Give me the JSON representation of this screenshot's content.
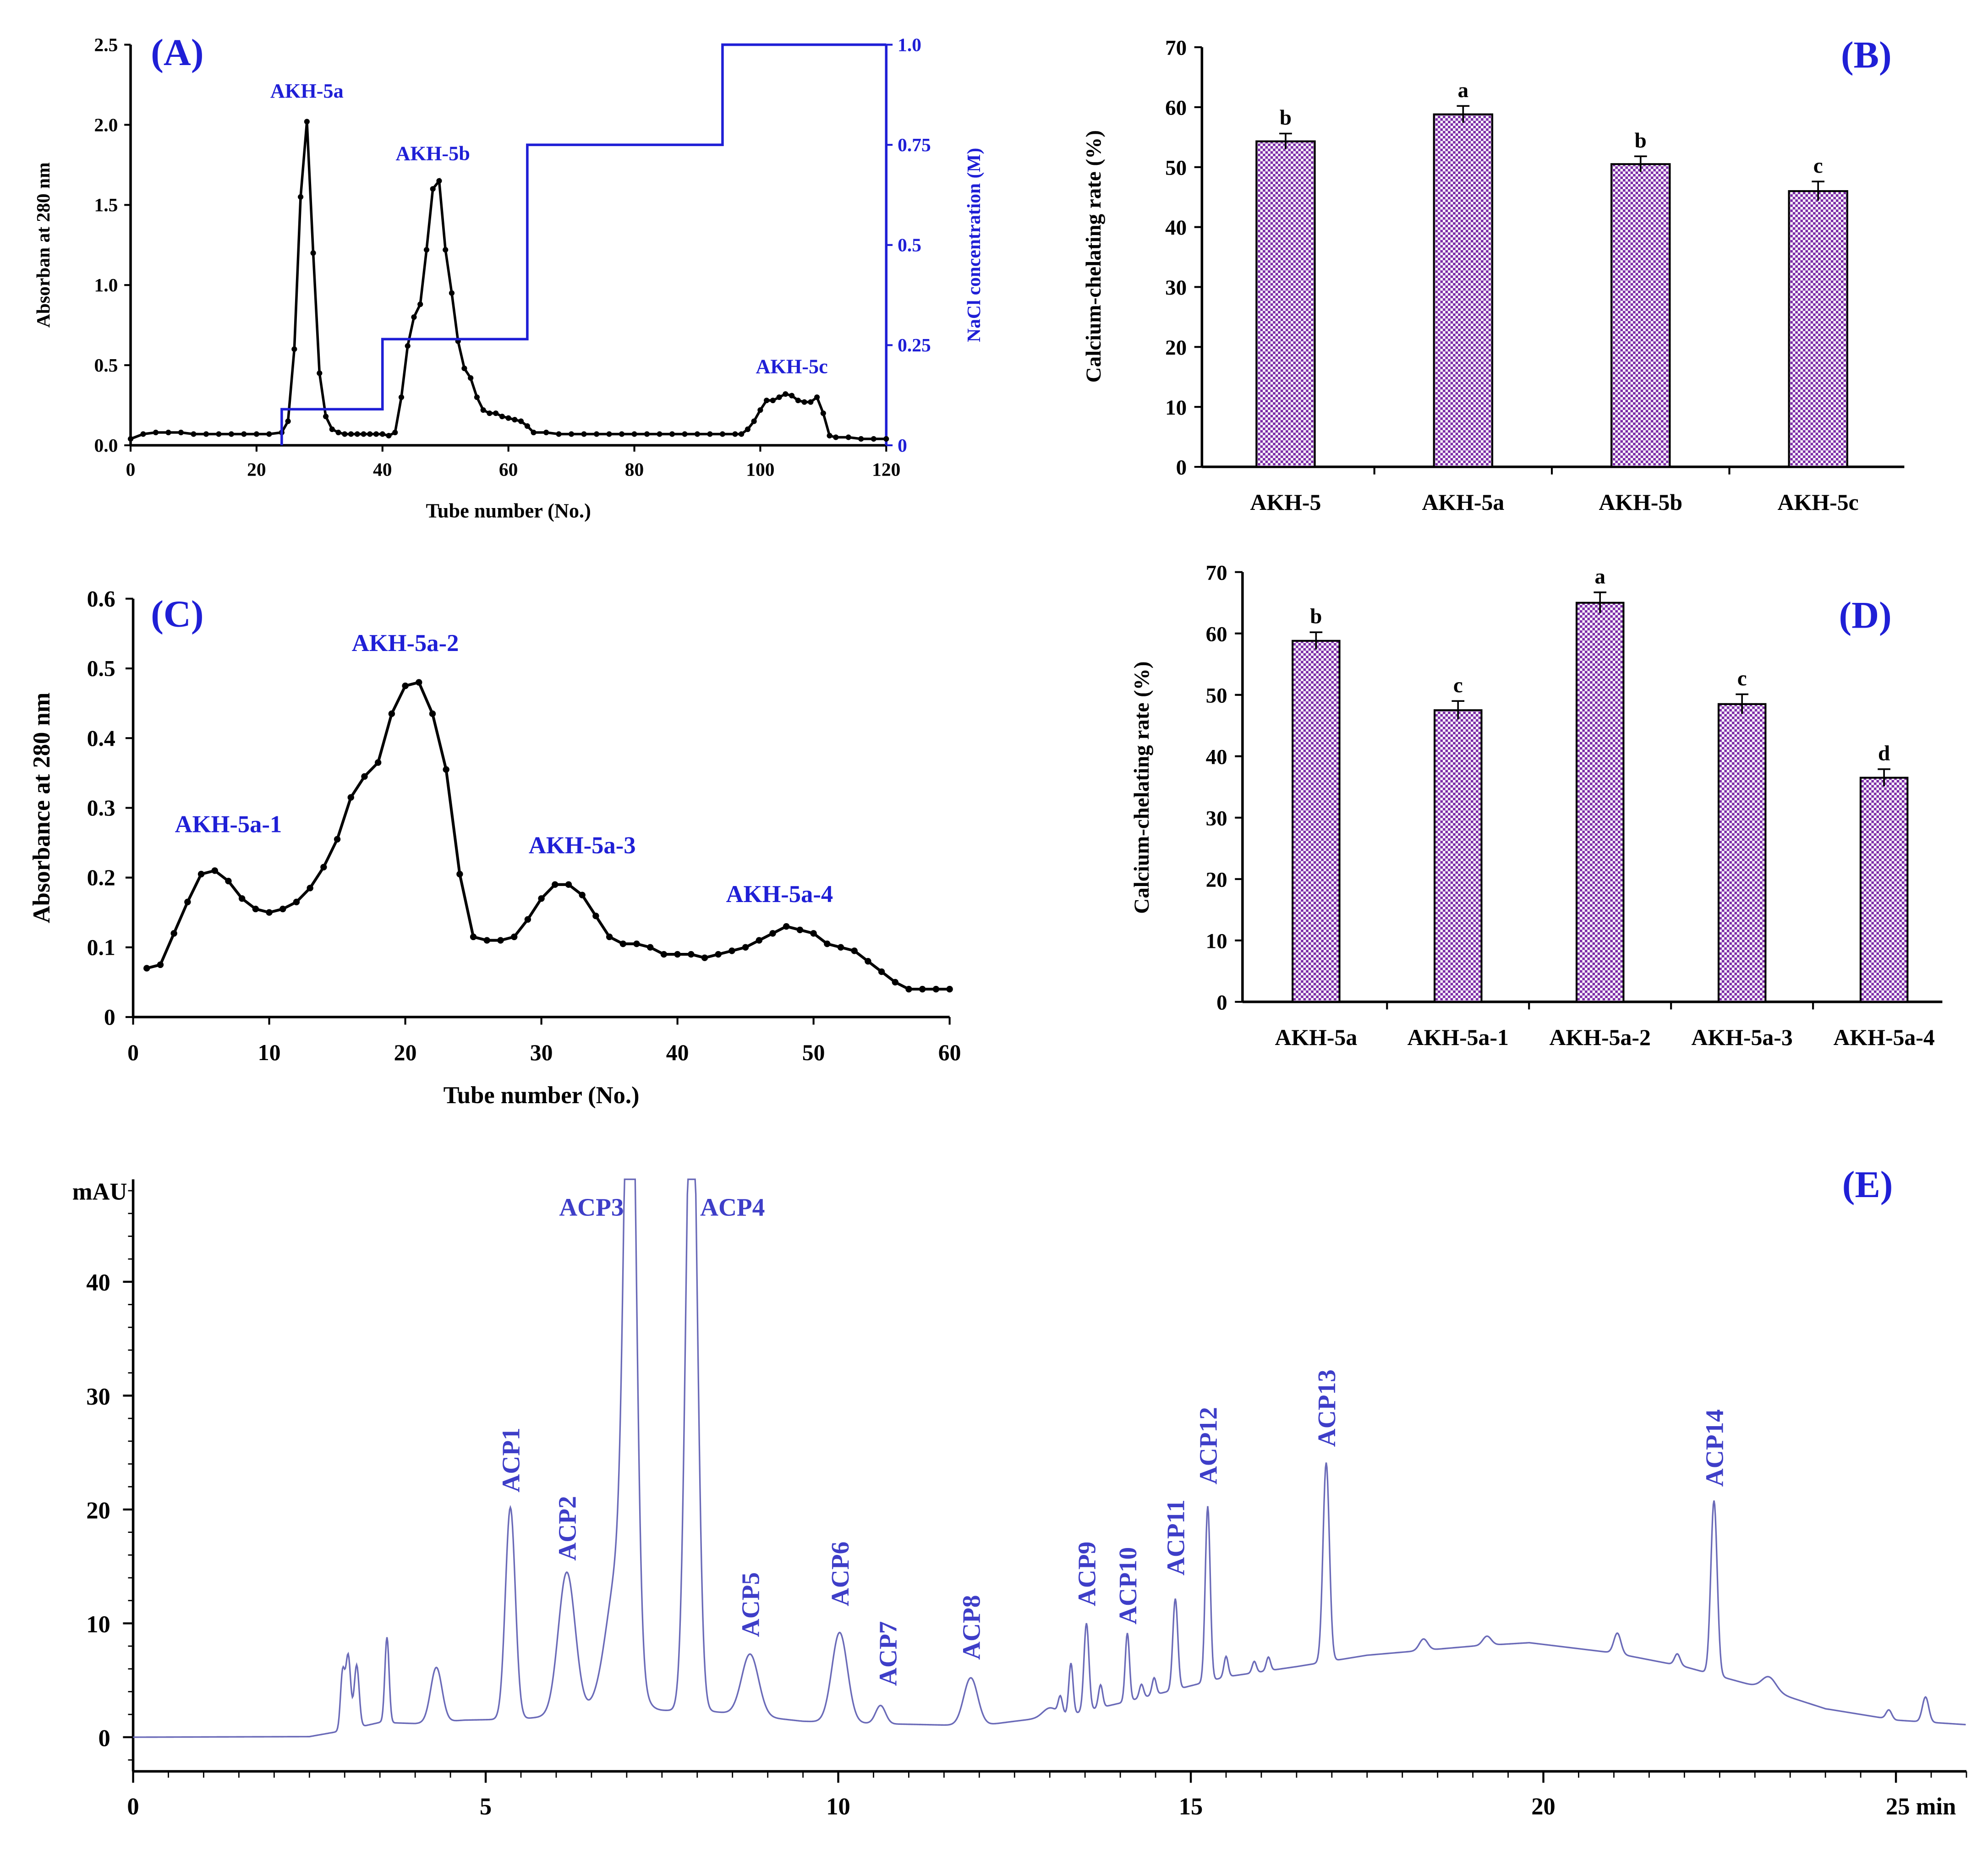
{
  "colors": {
    "axis": "#000000",
    "line": "#000000",
    "blue": "#1f1fd6",
    "peak_blue": "#3e3ec8",
    "hplc_trace": "#6a6ab8",
    "checker_a": "#7b2aa6",
    "checker_b": "#ffffff"
  },
  "chart_data": [
    {
      "panel": "(A)",
      "type": "line",
      "xlabel": "Tube number (No.)",
      "ylabel": "Absorban at 280 nm",
      "ylabel_right": "NaCl concentration (M)",
      "xlim": [
        0,
        120
      ],
      "ylim": [
        0,
        2.5
      ],
      "ylim_right": [
        0,
        1.0
      ],
      "x_ticks": [
        "0",
        "20",
        "40",
        "60",
        "80",
        "100",
        "120"
      ],
      "y_ticks": [
        "0.0",
        "0.5",
        "1.0",
        "1.5",
        "2.0",
        "2.5"
      ],
      "y_ticks_right": [
        "0",
        "0.25",
        "0.5",
        "0.75",
        "1.0"
      ],
      "series": [
        {
          "x": [
            0,
            2,
            4,
            6,
            8,
            10,
            12,
            14,
            16,
            18,
            20,
            22,
            24,
            25,
            26,
            27,
            28,
            29,
            30,
            31,
            32,
            33,
            34,
            35,
            36,
            37,
            38,
            39,
            40,
            41,
            42,
            43,
            44,
            45,
            46,
            47,
            48,
            49,
            50,
            51,
            52,
            53,
            54,
            55,
            56,
            57,
            58,
            59,
            60,
            61,
            62,
            63,
            64,
            66,
            68,
            70,
            72,
            74,
            76,
            78,
            80,
            82,
            84,
            86,
            88,
            90,
            92,
            94,
            96,
            97,
            98,
            99,
            100,
            101,
            102,
            103,
            104,
            105,
            106,
            107,
            108,
            109,
            110,
            111,
            112,
            114,
            116,
            118,
            120
          ],
          "y": [
            0.04,
            0.07,
            0.08,
            0.08,
            0.08,
            0.07,
            0.07,
            0.07,
            0.07,
            0.07,
            0.07,
            0.07,
            0.08,
            0.15,
            0.6,
            1.55,
            2.02,
            1.2,
            0.45,
            0.18,
            0.1,
            0.08,
            0.07,
            0.07,
            0.07,
            0.07,
            0.07,
            0.07,
            0.07,
            0.06,
            0.08,
            0.3,
            0.62,
            0.8,
            0.88,
            1.22,
            1.6,
            1.65,
            1.22,
            0.95,
            0.65,
            0.48,
            0.42,
            0.3,
            0.22,
            0.2,
            0.2,
            0.18,
            0.17,
            0.16,
            0.15,
            0.12,
            0.08,
            0.08,
            0.07,
            0.07,
            0.07,
            0.07,
            0.07,
            0.07,
            0.07,
            0.07,
            0.07,
            0.07,
            0.07,
            0.07,
            0.07,
            0.07,
            0.07,
            0.07,
            0.1,
            0.15,
            0.22,
            0.28,
            0.28,
            0.3,
            0.32,
            0.31,
            0.28,
            0.27,
            0.27,
            0.3,
            0.2,
            0.06,
            0.05,
            0.05,
            0.04,
            0.04,
            0.04
          ]
        },
        {
          "name": "NaCl",
          "axis": "right",
          "step_x": [
            24,
            24,
            40,
            40,
            63,
            63,
            94,
            94,
            120
          ],
          "step_y": [
            0,
            0.09,
            0.09,
            0.265,
            0.265,
            0.75,
            0.75,
            1.0,
            1.0
          ]
        }
      ],
      "annotations": [
        {
          "text": "AKH-5a",
          "x": 28,
          "y": 2.17
        },
        {
          "text": "AKH-5b",
          "x": 48,
          "y": 1.78
        },
        {
          "text": "AKH-5c",
          "x": 105,
          "y": 0.45
        }
      ]
    },
    {
      "panel": "(B)",
      "type": "bar",
      "ylabel": "Calcium-chelating rate (%)",
      "ylim": [
        0,
        70
      ],
      "y_ticks": [
        "0",
        "10",
        "20",
        "30",
        "40",
        "50",
        "60",
        "70"
      ],
      "categories": [
        "AKH-5",
        "AKH-5a",
        "AKH-5b",
        "AKH-5c"
      ],
      "values": [
        54.3,
        58.8,
        50.5,
        46.0
      ],
      "errors": [
        1.3,
        1.4,
        1.3,
        1.6
      ],
      "letters": [
        "b",
        "a",
        "b",
        "c"
      ]
    },
    {
      "panel": "(C)",
      "type": "line",
      "xlabel": "Tube number (No.)",
      "ylabel": "Absorbance at 280 nm",
      "xlim": [
        0,
        60
      ],
      "ylim": [
        0,
        0.6
      ],
      "x_ticks": [
        "0",
        "10",
        "20",
        "30",
        "40",
        "50",
        "60"
      ],
      "y_ticks": [
        "0",
        "0.1",
        "0.2",
        "0.3",
        "0.4",
        "0.5",
        "0.6"
      ],
      "series": [
        {
          "x": [
            1,
            2,
            3,
            4,
            5,
            6,
            7,
            8,
            9,
            10,
            11,
            12,
            13,
            14,
            15,
            16,
            17,
            18,
            19,
            20,
            21,
            22,
            23,
            24,
            25,
            26,
            27,
            28,
            29,
            30,
            31,
            32,
            33,
            34,
            35,
            36,
            37,
            38,
            39,
            40,
            41,
            42,
            43,
            44,
            45,
            46,
            47,
            48,
            49,
            50,
            51,
            52,
            53,
            54,
            55,
            56,
            57,
            58,
            59,
            60
          ],
          "y": [
            0.07,
            0.075,
            0.12,
            0.165,
            0.205,
            0.21,
            0.195,
            0.17,
            0.155,
            0.15,
            0.155,
            0.165,
            0.185,
            0.215,
            0.255,
            0.315,
            0.345,
            0.365,
            0.435,
            0.475,
            0.48,
            0.435,
            0.355,
            0.205,
            0.115,
            0.11,
            0.11,
            0.115,
            0.14,
            0.17,
            0.19,
            0.19,
            0.175,
            0.145,
            0.115,
            0.105,
            0.105,
            0.1,
            0.09,
            0.09,
            0.09,
            0.085,
            0.09,
            0.095,
            0.1,
            0.11,
            0.12,
            0.13,
            0.125,
            0.12,
            0.105,
            0.1,
            0.095,
            0.08,
            0.065,
            0.05,
            0.04,
            0.04,
            0.04,
            0.04
          ]
        }
      ],
      "annotations": [
        {
          "text": "AKH-5a-1",
          "x": 7,
          "y": 0.265
        },
        {
          "text": "AKH-5a-2",
          "x": 20,
          "y": 0.525
        },
        {
          "text": "AKH-5a-3",
          "x": 33,
          "y": 0.235
        },
        {
          "text": "AKH-5a-4",
          "x": 47.5,
          "y": 0.165
        }
      ]
    },
    {
      "panel": "(D)",
      "type": "bar",
      "ylabel": "Calcium-chelating rate (%)",
      "ylim": [
        0,
        70
      ],
      "y_ticks": [
        "0",
        "10",
        "20",
        "30",
        "40",
        "50",
        "60",
        "70"
      ],
      "categories": [
        "AKH-5a",
        "AKH-5a-1",
        "AKH-5a-2",
        "AKH-5a-3",
        "AKH-5a-4"
      ],
      "values": [
        58.8,
        47.5,
        65.0,
        48.5,
        36.5
      ],
      "errors": [
        1.4,
        1.5,
        1.7,
        1.6,
        1.4
      ],
      "letters": [
        "b",
        "c",
        "a",
        "c",
        "d"
      ]
    },
    {
      "panel": "(E)",
      "type": "line",
      "ylabel": "mAU",
      "xunit": "min",
      "xlim": [
        0,
        26
      ],
      "ylim": [
        -3,
        49
      ],
      "x_ticks": [
        "0",
        "5",
        "10",
        "15",
        "20",
        "25 min"
      ],
      "y_ticks": [
        "0",
        "10",
        "20",
        "30",
        "40"
      ],
      "baseline": [
        [
          0,
          0
        ],
        [
          2.5,
          0.05
        ],
        [
          3,
          0.6
        ],
        [
          3.5,
          1.3
        ],
        [
          4,
          1.2
        ],
        [
          4.7,
          1.5
        ],
        [
          5.5,
          1.6
        ],
        [
          6.5,
          2.2
        ],
        [
          8,
          2.4
        ],
        [
          9.5,
          1.4
        ],
        [
          10.5,
          1.2
        ],
        [
          12,
          1.0
        ],
        [
          12.5,
          1.4
        ],
        [
          13.3,
          2.0
        ],
        [
          14,
          3.0
        ],
        [
          14.8,
          4.2
        ],
        [
          15.5,
          5.3
        ],
        [
          16.5,
          6.2
        ],
        [
          17.5,
          7.2
        ],
        [
          19,
          8.0
        ],
        [
          19.8,
          8.3
        ],
        [
          21,
          7.4
        ],
        [
          22,
          6.2
        ],
        [
          23,
          4.5
        ],
        [
          24,
          2.5
        ],
        [
          25,
          1.5
        ],
        [
          26,
          1.1
        ]
      ],
      "peaks": [
        {
          "t": 2.97,
          "h": 5.0,
          "w": 0.03
        },
        {
          "t": 3.05,
          "h": 6.5,
          "w": 0.035
        },
        {
          "t": 3.17,
          "h": 5.5,
          "w": 0.035
        },
        {
          "t": 3.6,
          "h": 7.5,
          "w": 0.03
        },
        {
          "t": 4.3,
          "h": 4.8,
          "w": 0.08
        },
        {
          "t": 5.35,
          "h": 18.6,
          "w": 0.07
        },
        {
          "t": 6.15,
          "h": 12.5,
          "w": 0.12
        },
        {
          "t": 6.9,
          "h": 13.0,
          "w": 0.18
        },
        {
          "t": 7.05,
          "h": 60.0,
          "w": 0.08
        },
        {
          "t": 7.92,
          "h": 60.0,
          "w": 0.08
        },
        {
          "t": 8.75,
          "h": 5.4,
          "w": 0.12
        },
        {
          "t": 10.02,
          "h": 7.9,
          "w": 0.11
        },
        {
          "t": 10.6,
          "h": 1.6,
          "w": 0.07
        },
        {
          "t": 11.88,
          "h": 4.2,
          "w": 0.1
        },
        {
          "t": 13.0,
          "h": 0.8,
          "w": 0.1
        },
        {
          "t": 13.15,
          "h": 1.5,
          "w": 0.03
        },
        {
          "t": 13.3,
          "h": 4.5,
          "w": 0.03
        },
        {
          "t": 13.52,
          "h": 7.7,
          "w": 0.035
        },
        {
          "t": 13.72,
          "h": 2.0,
          "w": 0.03
        },
        {
          "t": 14.1,
          "h": 6.0,
          "w": 0.03
        },
        {
          "t": 14.3,
          "h": 1.2,
          "w": 0.03
        },
        {
          "t": 14.48,
          "h": 1.5,
          "w": 0.03
        },
        {
          "t": 14.78,
          "h": 8.0,
          "w": 0.035
        },
        {
          "t": 15.24,
          "h": 15.4,
          "w": 0.035
        },
        {
          "t": 15.5,
          "h": 1.8,
          "w": 0.03
        },
        {
          "t": 15.9,
          "h": 1.0,
          "w": 0.03
        },
        {
          "t": 16.1,
          "h": 1.2,
          "w": 0.03
        },
        {
          "t": 16.92,
          "h": 17.5,
          "w": 0.045
        },
        {
          "t": 18.3,
          "h": 1.0,
          "w": 0.06
        },
        {
          "t": 19.2,
          "h": 0.8,
          "w": 0.06
        },
        {
          "t": 21.05,
          "h": 1.8,
          "w": 0.05
        },
        {
          "t": 21.9,
          "h": 1.0,
          "w": 0.04
        },
        {
          "t": 22.42,
          "h": 15.3,
          "w": 0.045
        },
        {
          "t": 23.2,
          "h": 1.2,
          "w": 0.1
        },
        {
          "t": 24.9,
          "h": 0.8,
          "w": 0.04
        },
        {
          "t": 25.42,
          "h": 2.2,
          "w": 0.045
        }
      ],
      "labels": [
        {
          "text": "ACP1",
          "t": 5.35,
          "y": 21.5,
          "rot": true
        },
        {
          "text": "ACP2",
          "t": 6.15,
          "y": 15.5,
          "rot": true
        },
        {
          "text": "ACP3",
          "t": 6.5,
          "y": 45.8,
          "rot": false
        },
        {
          "text": "ACP4",
          "t": 8.5,
          "y": 45.8,
          "rot": false
        },
        {
          "text": "ACP5",
          "t": 8.75,
          "y": 8.8,
          "rot": true
        },
        {
          "text": "ACP6",
          "t": 10.02,
          "y": 11.5,
          "rot": true
        },
        {
          "text": "ACP7",
          "t": 10.7,
          "y": 4.5,
          "rot": true
        },
        {
          "text": "ACP8",
          "t": 11.88,
          "y": 6.8,
          "rot": true
        },
        {
          "text": "ACP9",
          "t": 13.52,
          "y": 11.5,
          "rot": true
        },
        {
          "text": "ACP10",
          "t": 14.1,
          "y": 9.9,
          "rot": true
        },
        {
          "text": "ACP11",
          "t": 14.78,
          "y": 14.2,
          "rot": true
        },
        {
          "text": "ACP12",
          "t": 15.24,
          "y": 22.2,
          "rot": true
        },
        {
          "text": "ACP13",
          "t": 16.92,
          "y": 25.5,
          "rot": true
        },
        {
          "text": "ACP14",
          "t": 22.42,
          "y": 22.0,
          "rot": true
        }
      ]
    }
  ]
}
